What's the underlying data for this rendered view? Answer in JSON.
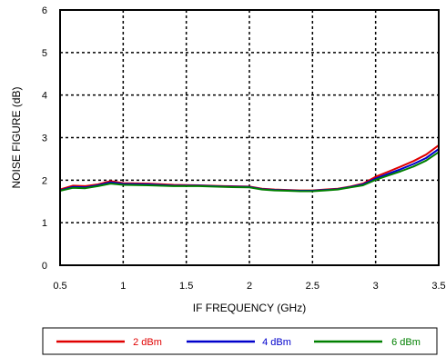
{
  "chart_data": {
    "type": "line",
    "title": "",
    "xlabel": "IF FREQUENCY (GHz)",
    "ylabel": "NOISE FIGURE (dB)",
    "xlim": [
      0.5,
      3.5
    ],
    "ylim": [
      0,
      6
    ],
    "xticks": [
      0.5,
      1,
      1.5,
      2,
      2.5,
      3,
      3.5
    ],
    "xtick_labels": [
      "0.5",
      "1",
      "1.5",
      "2",
      "2.5",
      "3",
      "3.5"
    ],
    "yticks": [
      0,
      1,
      2,
      3,
      4,
      5,
      6
    ],
    "ytick_labels": [
      "0",
      "1",
      "2",
      "3",
      "4",
      "5",
      "6"
    ],
    "grid": true,
    "legend_position": "bottom",
    "x": [
      0.5,
      0.6,
      0.7,
      0.8,
      0.9,
      1.0,
      1.2,
      1.4,
      1.6,
      1.8,
      2.0,
      2.1,
      2.2,
      2.3,
      2.4,
      2.5,
      2.6,
      2.7,
      2.8,
      2.9,
      3.0,
      3.1,
      3.2,
      3.3,
      3.4,
      3.5
    ],
    "series": [
      {
        "name": "2 dBm",
        "color": "#e00000",
        "values": [
          1.78,
          1.87,
          1.86,
          1.9,
          1.98,
          1.93,
          1.92,
          1.89,
          1.88,
          1.86,
          1.85,
          1.8,
          1.78,
          1.77,
          1.76,
          1.76,
          1.78,
          1.8,
          1.85,
          1.92,
          2.08,
          2.2,
          2.32,
          2.45,
          2.6,
          2.82
        ]
      },
      {
        "name": "4 dBm",
        "color": "#0000cc",
        "values": [
          1.76,
          1.84,
          1.83,
          1.88,
          1.95,
          1.91,
          1.9,
          1.87,
          1.87,
          1.85,
          1.84,
          1.79,
          1.77,
          1.76,
          1.75,
          1.75,
          1.77,
          1.79,
          1.84,
          1.9,
          2.04,
          2.15,
          2.26,
          2.38,
          2.52,
          2.73
        ]
      },
      {
        "name": "6 dBm",
        "color": "#008000",
        "values": [
          1.75,
          1.82,
          1.81,
          1.86,
          1.92,
          1.89,
          1.88,
          1.86,
          1.86,
          1.84,
          1.83,
          1.78,
          1.76,
          1.75,
          1.74,
          1.74,
          1.76,
          1.78,
          1.83,
          1.88,
          2.01,
          2.11,
          2.21,
          2.32,
          2.46,
          2.66
        ]
      }
    ]
  }
}
